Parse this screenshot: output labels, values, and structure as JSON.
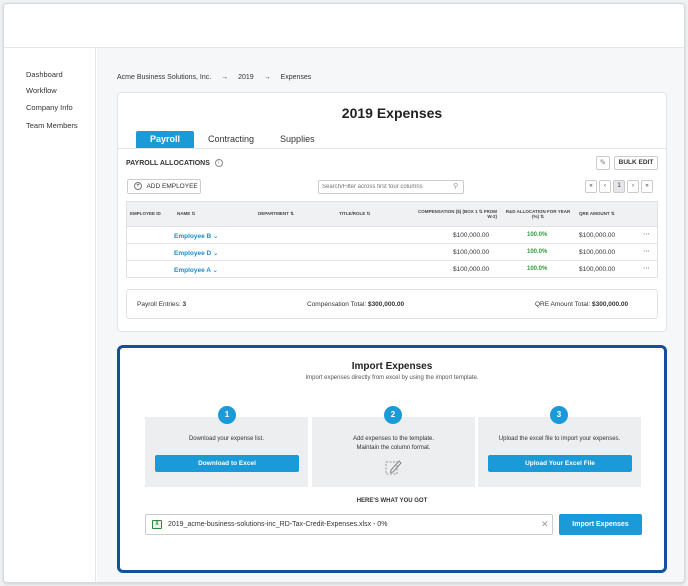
{
  "sidebar": {
    "items": [
      {
        "label": "Dashboard"
      },
      {
        "label": "Workflow"
      },
      {
        "label": "Company Info"
      },
      {
        "label": "Team Members"
      }
    ]
  },
  "breadcrumb": {
    "company": "Acme Business Solutions, Inc.",
    "sep": "→",
    "year": "2019",
    "page": "Expenses"
  },
  "page": {
    "title": "2019 Expenses"
  },
  "tabs": [
    {
      "label": "Payroll",
      "active": true
    },
    {
      "label": "Contracting"
    },
    {
      "label": "Supplies"
    }
  ],
  "payroll": {
    "section_title": "PAYROLL ALLOCATIONS",
    "info_glyph": "i",
    "edit_glyph": "✎",
    "bulk_edit": "BULK EDIT",
    "add_employee": "ADD EMPLOYEE",
    "add_glyph": "+",
    "search_placeholder": "Search/Filter across first four columns",
    "search_glyph": "⚲",
    "pager": {
      "first": "«",
      "prev": "‹",
      "page": "1",
      "next": "›",
      "last": "»"
    },
    "columns": [
      "EMPLOYEE ID",
      "NAME ⇅",
      "DEPARTMENT ⇅",
      "TITLE/ROLE ⇅",
      "COMPENSATION ($) (BOX 1 ⇅ FROM W-2)",
      "R&D ALLOCATION FOR YEAR (%) ⇅",
      "QRE AMOUNT ⇅"
    ],
    "rows": [
      {
        "name": "Employee B ⌄",
        "compensation": "$100,000.00",
        "allocation": "100.0%",
        "qre": "$100,000.00",
        "more": "⋯"
      },
      {
        "name": "Employee D ⌄",
        "compensation": "$100,000.00",
        "allocation": "100.0%",
        "qre": "$100,000.00",
        "more": "⋯"
      },
      {
        "name": "Employee A ⌄",
        "compensation": "$100,000.00",
        "allocation": "100.0%",
        "qre": "$100,000.00",
        "more": "⋯"
      }
    ],
    "summary": {
      "entries_label": "Payroll Entries:",
      "entries_value": "3",
      "comp_label": "Compensation Total:",
      "comp_value": "$300,000.00",
      "qre_label": "QRE Amount Total:",
      "qre_value": "$300,000.00"
    }
  },
  "import": {
    "title": "Import Expenses",
    "subtitle": "Import expenses directly from excel by using the import template.",
    "steps": [
      {
        "num": "1",
        "text": "Download your expense list.",
        "button": "Download to Excel"
      },
      {
        "num": "2",
        "text_line1": "Add expenses to the template.",
        "text_line2": "Maintain the column format."
      },
      {
        "num": "3",
        "text": "Upload the excel file to import your expenses.",
        "button": "Upload Your Excel File"
      }
    ],
    "got_label": "HERE'S WHAT YOU GOT",
    "file_name": "2019_acme-business-solutions-inc_RD-Tax-Credit-Expenses.xlsx - 0%",
    "file_glyph": "X",
    "close_glyph": "✕",
    "import_button": "Import Expenses"
  },
  "colors": {
    "accent": "#1a9ad9",
    "highlight_border": "#144f9c",
    "positive": "#2f9e3d"
  }
}
